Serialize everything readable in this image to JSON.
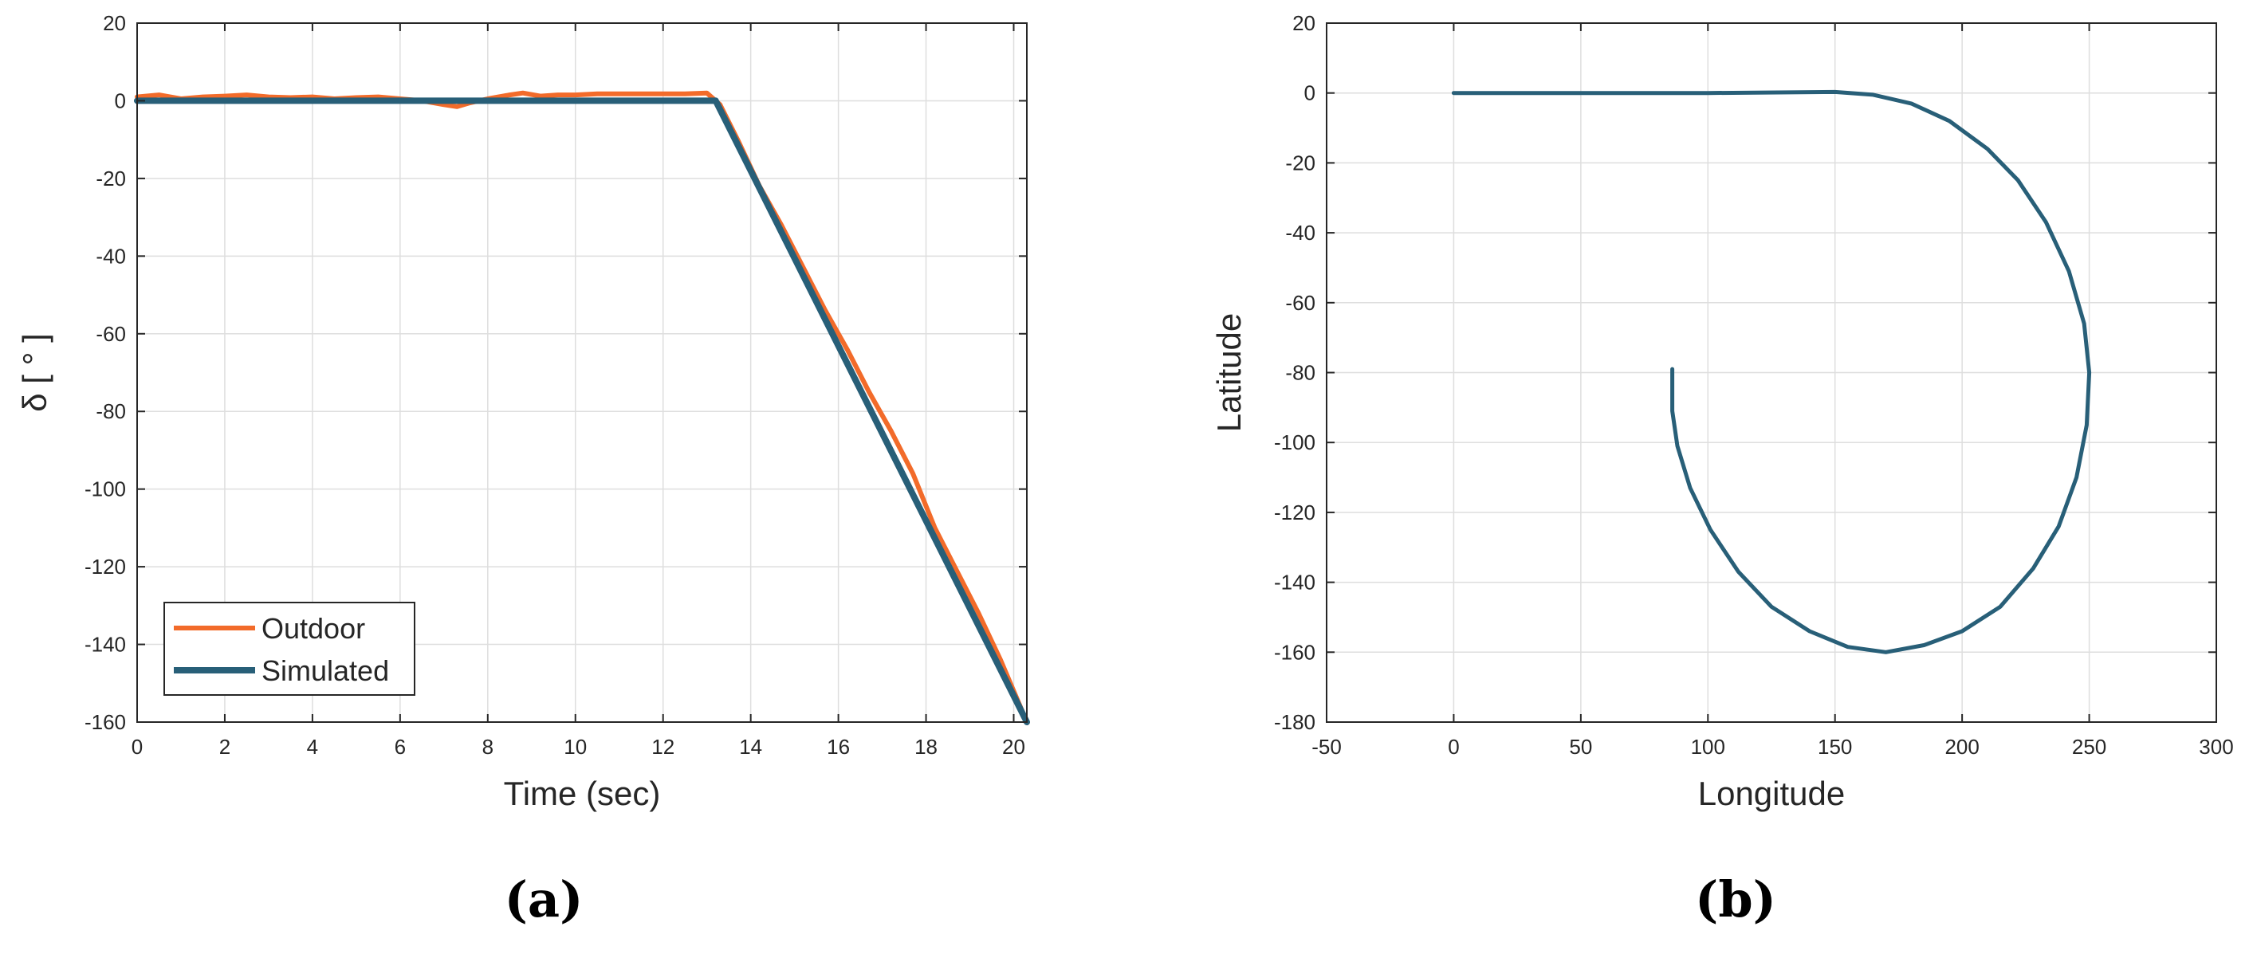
{
  "panels": [
    {
      "label": "(a)"
    },
    {
      "label": "(b)"
    }
  ],
  "chart_data": [
    {
      "type": "line",
      "xlabel": "Time (sec)",
      "ylabel": "δ [ ° ]",
      "xlim": [
        0,
        20.3
      ],
      "ylim": [
        -160,
        20
      ],
      "xticks": [
        0,
        2,
        4,
        6,
        8,
        10,
        12,
        14,
        16,
        18,
        20
      ],
      "yticks": [
        20,
        0,
        -20,
        -40,
        -60,
        -80,
        -100,
        -120,
        -140,
        -160
      ],
      "grid": true,
      "legend": {
        "placement": "bottom-left",
        "entries": [
          "Outdoor",
          "Simulated"
        ]
      },
      "series": [
        {
          "name": "Outdoor",
          "color": "#f26b2a",
          "x": [
            0,
            0.5,
            1.0,
            1.5,
            2.0,
            2.5,
            3.0,
            3.5,
            4.0,
            4.5,
            5.0,
            5.5,
            6.0,
            6.5,
            7.0,
            7.3,
            7.6,
            8.0,
            8.5,
            8.8,
            9.2,
            9.6,
            10.0,
            10.5,
            11.0,
            11.5,
            12.0,
            12.5,
            13.0,
            13.3,
            13.7,
            14.2,
            14.7,
            15.2,
            15.7,
            16.2,
            16.7,
            17.2,
            17.7,
            18.2,
            18.7,
            19.2,
            19.7,
            20.3
          ],
          "y": [
            1,
            1.5,
            0.5,
            1,
            1.2,
            1.5,
            1,
            0.8,
            1,
            0.5,
            0.8,
            1,
            0.5,
            0,
            -1,
            -1.5,
            -0.5,
            0.5,
            1.5,
            2,
            1.2,
            1.5,
            1.5,
            1.8,
            1.8,
            1.8,
            1.8,
            1.8,
            2,
            -1,
            -10,
            -22,
            -32,
            -43,
            -54,
            -64,
            -75,
            -85,
            -96,
            -110,
            -121,
            -132,
            -144,
            -160
          ]
        },
        {
          "name": "Simulated",
          "color": "#285f78",
          "x": [
            0,
            13.2,
            20.3
          ],
          "y": [
            0,
            0,
            -160
          ]
        }
      ]
    },
    {
      "type": "line",
      "xlabel": "Longitude",
      "ylabel": "Latitude",
      "xlim": [
        -50,
        300
      ],
      "ylim": [
        -180,
        20
      ],
      "xticks": [
        -50,
        0,
        50,
        100,
        150,
        200,
        250,
        300
      ],
      "yticks": [
        20,
        0,
        -20,
        -40,
        -60,
        -80,
        -100,
        -120,
        -140,
        -160,
        -180
      ],
      "grid": true,
      "series": [
        {
          "color": "#285f78",
          "x": [
            0,
            50,
            100,
            150,
            165,
            180,
            195,
            210,
            222,
            233,
            242,
            248,
            250,
            249,
            245,
            238,
            228,
            215,
            200,
            185,
            170,
            155,
            140,
            125,
            112,
            101,
            93,
            88,
            86,
            86
          ],
          "y": [
            0,
            0,
            0,
            0.3,
            -0.5,
            -3,
            -8,
            -16,
            -25,
            -37,
            -51,
            -66,
            -80,
            -95,
            -110,
            -124,
            -136,
            -147,
            -154,
            -158,
            -160,
            -158.5,
            -154,
            -147,
            -137,
            -125,
            -113,
            -101,
            -91,
            -79
          ]
        }
      ]
    }
  ]
}
